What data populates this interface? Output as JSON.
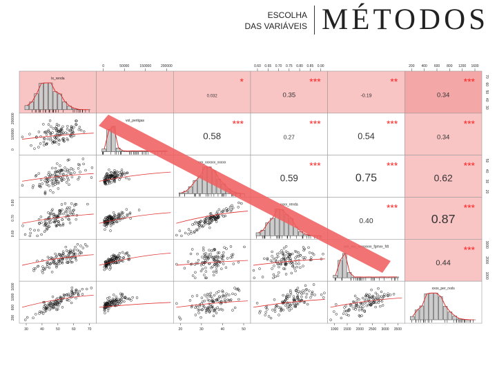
{
  "header": {
    "subtitle_line1": "ESCOLHA",
    "subtitle_line2": "DAS VARIÁVEIS",
    "title": "MÉTODOS"
  },
  "colors": {
    "background": "#ffffff",
    "highlight_cell": "#f9c4c4",
    "highlight_cell_strong": "#f4a7a7",
    "histogram_bar": "#cccccc",
    "stars": "#ff2222",
    "smooth_line": "#e03030",
    "diagonal_band": "#f06060"
  },
  "chart_data": {
    "type": "scatter-matrix",
    "variables": [
      "tx_renda",
      "vol_pertigas",
      "xxxxx_xxxxx_xxxx",
      "xxxx_renda",
      "xxx_xxx_pertigas_fgmsd_fdt",
      "xxxx_per_rxxls"
    ],
    "histogram_labels": [
      "tx_renda",
      "vol_pertigas",
      "xxx_xxxxxx_xxxxx",
      "xxxx_renda",
      "xxx_xxx_xxxxxxxx_fgmxx_fdt",
      "xxxx_per_rxxls"
    ],
    "top_axis": [
      {
        "column": 1,
        "ticks": [
          "0",
          "50000",
          "150000",
          "200000"
        ]
      },
      {
        "column": 3,
        "ticks": [
          "0.60",
          "0.65",
          "0.70",
          "0.75",
          "0.80",
          "0.85",
          "0.90"
        ]
      },
      {
        "column": 5,
        "ticks": [
          "200",
          "400",
          "600",
          "800",
          "1200",
          "1600"
        ]
      }
    ],
    "right_axis": [
      {
        "row": 0,
        "ticks": [
          "30",
          "40",
          "50",
          "60",
          "70"
        ]
      },
      {
        "row": 2,
        "ticks": [
          "20",
          "30",
          "40",
          "50"
        ]
      },
      {
        "row": 4,
        "ticks": [
          "1000",
          "2000",
          "3000"
        ]
      }
    ],
    "bottom_axis": [
      {
        "column": 0,
        "ticks": [
          "30",
          "40",
          "50",
          "60",
          "70"
        ]
      },
      {
        "column": 2,
        "ticks": [
          "20",
          "30",
          "40",
          "50"
        ]
      },
      {
        "column": 4,
        "ticks": [
          "1000",
          "1500",
          "2000",
          "2500",
          "3000",
          "3500"
        ]
      }
    ],
    "left_axis": [
      {
        "row": 1,
        "ticks": [
          "0",
          "100000",
          "200000"
        ]
      },
      {
        "row": 3,
        "ticks": [
          "0.60",
          "0.70",
          "0.80"
        ]
      },
      {
        "row": 5,
        "ticks": [
          "200",
          "600",
          "1000",
          "1600"
        ]
      }
    ],
    "correlations": [
      {
        "row": 0,
        "col": 1,
        "value": "",
        "stars": ""
      },
      {
        "row": 0,
        "col": 2,
        "value": "0.032",
        "stars": "*"
      },
      {
        "row": 0,
        "col": 3,
        "value": "0.35",
        "stars": "***"
      },
      {
        "row": 0,
        "col": 4,
        "value": "-0.19",
        "stars": "**"
      },
      {
        "row": 0,
        "col": 5,
        "value": "0.34",
        "stars": "***"
      },
      {
        "row": 1,
        "col": 2,
        "value": "0.58",
        "stars": "***"
      },
      {
        "row": 1,
        "col": 3,
        "value": "0.27",
        "stars": "***"
      },
      {
        "row": 1,
        "col": 4,
        "value": "0.54",
        "stars": "***"
      },
      {
        "row": 1,
        "col": 5,
        "value": "0.34",
        "stars": "***"
      },
      {
        "row": 2,
        "col": 3,
        "value": "0.59",
        "stars": "***"
      },
      {
        "row": 2,
        "col": 4,
        "value": "0.75",
        "stars": "***"
      },
      {
        "row": 2,
        "col": 5,
        "value": "0.62",
        "stars": "***"
      },
      {
        "row": 3,
        "col": 4,
        "value": "0.40",
        "stars": "***"
      },
      {
        "row": 3,
        "col": 5,
        "value": "0.87",
        "stars": "***"
      },
      {
        "row": 4,
        "col": 5,
        "value": "0.44",
        "stars": "***"
      }
    ],
    "highlighted_row": 0,
    "highlighted_column": 5,
    "grid": false
  }
}
